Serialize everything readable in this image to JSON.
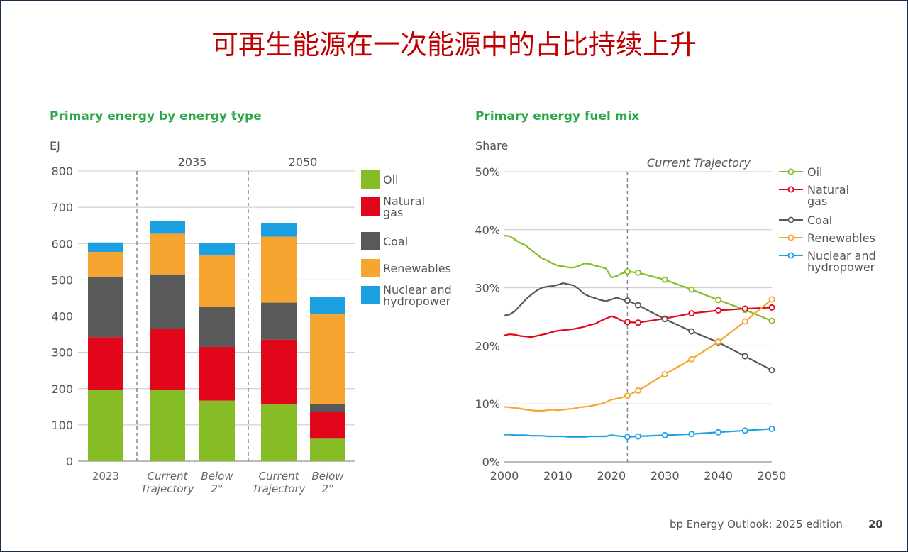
{
  "slide": {
    "title": "可再生能源在一次能源中的占比持续上升",
    "footer": "bp Energy Outlook: 2025 edition",
    "page_number": "20"
  },
  "colors": {
    "oil": "#86bc25",
    "natural_gas": "#e2061a",
    "coal": "#595959",
    "renewables": "#f5a530",
    "nuclear_hydro": "#1ba1e2",
    "title_red": "#c00000",
    "panel_green": "#2aa84a"
  },
  "chart_data": [
    {
      "type": "bar",
      "stacked": true,
      "title": "Primary energy by energy type",
      "ylabel": "EJ",
      "ylim": [
        0,
        800
      ],
      "yticks": [
        0,
        100,
        200,
        300,
        400,
        500,
        600,
        700,
        800
      ],
      "groups": [
        {
          "label": "",
          "categories": [
            "2023"
          ]
        },
        {
          "label": "2035",
          "categories": [
            "Current Trajectory",
            "Below 2°"
          ]
        },
        {
          "label": "2050",
          "categories": [
            "Current Trajectory",
            "Below 2°"
          ]
        }
      ],
      "categories": [
        "2023",
        "Current Trajectory",
        "Below 2°",
        "Current Trajectory",
        "Below 2°"
      ],
      "series": [
        {
          "name": "Oil",
          "color_key": "oil",
          "values": [
            197,
            197,
            167,
            158,
            62
          ]
        },
        {
          "name": "Natural gas",
          "color_key": "natural_gas",
          "values": [
            145,
            168,
            148,
            177,
            73
          ]
        },
        {
          "name": "Coal",
          "color_key": "coal",
          "values": [
            167,
            150,
            110,
            102,
            22
          ]
        },
        {
          "name": "Renewables",
          "color_key": "renewables",
          "values": [
            68,
            112,
            142,
            182,
            248
          ]
        },
        {
          "name": "Nuclear and hydropower",
          "color_key": "nuclear_hydro",
          "values": [
            26,
            35,
            34,
            37,
            48
          ]
        }
      ],
      "legend": "right"
    },
    {
      "type": "line",
      "title": "Primary energy fuel mix",
      "ylabel": "Share",
      "annotation": "Current Trajectory",
      "annotation_x": 2023,
      "xlim": [
        2000,
        2050
      ],
      "ylim": [
        0,
        0.5
      ],
      "xticks": [
        2000,
        2010,
        2020,
        2030,
        2040,
        2050
      ],
      "yticks": [
        0,
        0.1,
        0.2,
        0.3,
        0.4,
        0.5
      ],
      "ytick_labels": [
        "0%",
        "10%",
        "20%",
        "30%",
        "40%",
        "50%"
      ],
      "historical_x": [
        2000,
        2001,
        2002,
        2003,
        2004,
        2005,
        2006,
        2007,
        2008,
        2009,
        2010,
        2011,
        2012,
        2013,
        2014,
        2015,
        2016,
        2017,
        2018,
        2019,
        2020,
        2021,
        2022,
        2023
      ],
      "projection_x": [
        2023,
        2025,
        2030,
        2035,
        2040,
        2045,
        2050
      ],
      "series": [
        {
          "name": "Oil",
          "color_key": "oil",
          "historical": [
            0.39,
            0.389,
            0.383,
            0.377,
            0.373,
            0.365,
            0.358,
            0.351,
            0.347,
            0.342,
            0.338,
            0.337,
            0.335,
            0.335,
            0.338,
            0.342,
            0.341,
            0.338,
            0.336,
            0.333,
            0.318,
            0.32,
            0.325,
            0.328
          ],
          "projection": [
            0.328,
            0.326,
            0.314,
            0.297,
            0.279,
            0.262,
            0.243
          ]
        },
        {
          "name": "Natural gas",
          "color_key": "natural_gas",
          "historical": [
            0.218,
            0.22,
            0.219,
            0.217,
            0.216,
            0.215,
            0.217,
            0.219,
            0.221,
            0.224,
            0.226,
            0.227,
            0.228,
            0.229,
            0.231,
            0.233,
            0.236,
            0.238,
            0.243,
            0.247,
            0.251,
            0.248,
            0.243,
            0.241
          ],
          "projection": [
            0.241,
            0.24,
            0.247,
            0.256,
            0.261,
            0.264,
            0.266
          ]
        },
        {
          "name": "Coal",
          "color_key": "coal",
          "historical": [
            0.252,
            0.254,
            0.26,
            0.27,
            0.28,
            0.288,
            0.295,
            0.3,
            0.302,
            0.303,
            0.305,
            0.308,
            0.306,
            0.304,
            0.297,
            0.289,
            0.285,
            0.282,
            0.279,
            0.277,
            0.28,
            0.283,
            0.28,
            0.278
          ],
          "projection": [
            0.278,
            0.27,
            0.246,
            0.225,
            0.206,
            0.182,
            0.158
          ]
        },
        {
          "name": "Renewables",
          "color_key": "renewables",
          "historical": [
            0.095,
            0.094,
            0.093,
            0.092,
            0.09,
            0.089,
            0.088,
            0.088,
            0.089,
            0.09,
            0.089,
            0.09,
            0.091,
            0.092,
            0.094,
            0.095,
            0.096,
            0.098,
            0.1,
            0.103,
            0.107,
            0.109,
            0.111,
            0.114
          ],
          "projection": [
            0.114,
            0.123,
            0.151,
            0.177,
            0.207,
            0.242,
            0.28
          ]
        },
        {
          "name": "Nuclear and hydropower",
          "color_key": "nuclear_hydro",
          "historical": [
            0.047,
            0.047,
            0.046,
            0.046,
            0.046,
            0.045,
            0.045,
            0.045,
            0.044,
            0.044,
            0.044,
            0.044,
            0.043,
            0.043,
            0.043,
            0.043,
            0.044,
            0.044,
            0.044,
            0.044,
            0.046,
            0.045,
            0.044,
            0.043
          ],
          "projection": [
            0.043,
            0.044,
            0.046,
            0.048,
            0.051,
            0.054,
            0.057
          ]
        }
      ],
      "legend": "right"
    }
  ]
}
